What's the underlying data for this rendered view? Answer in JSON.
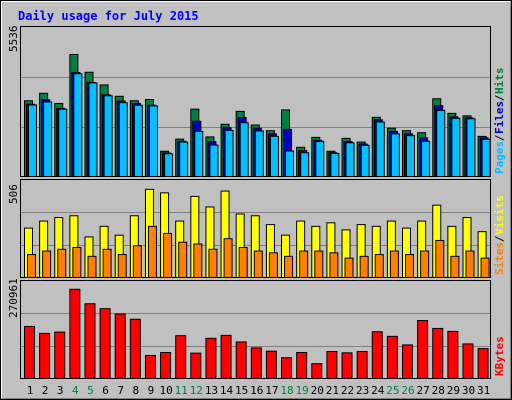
{
  "chart_data": {
    "type": "bar",
    "title": "Daily usage for July 2015",
    "categories": [
      "1",
      "2",
      "3",
      "4",
      "5",
      "6",
      "7",
      "8",
      "9",
      "10",
      "11",
      "12",
      "13",
      "14",
      "15",
      "16",
      "17",
      "18",
      "19",
      "20",
      "21",
      "22",
      "23",
      "24",
      "25",
      "26",
      "27",
      "28",
      "29",
      "30",
      "31"
    ],
    "weekend_days": [
      "4",
      "5",
      "11",
      "12",
      "18",
      "19",
      "25",
      "26"
    ],
    "panels": [
      {
        "id": "hits-panel",
        "max_label": "5536",
        "ylim": [
          0,
          5536
        ],
        "series": [
          {
            "name": "Hits",
            "color": "#008040",
            "values": [
              3060,
              3360,
              2950,
              4930,
              4210,
              3700,
              3240,
              3060,
              3110,
              1020,
              1510,
              2720,
              1600,
              2110,
              2630,
              2080,
              1850,
              2690,
              1180,
              1580,
              1020,
              1540,
              1390,
              2390,
              1950,
              1850,
              1770,
              3140,
              2550,
              2450,
              1620
            ]
          },
          {
            "name": "Files",
            "color": "#0000c0",
            "values": [
              2920,
              3100,
              2750,
              4200,
              3800,
              3300,
              3050,
              2950,
              2880,
              950,
              1420,
              2230,
              1410,
              1970,
              2380,
              1950,
              1720,
              1900,
              1050,
              1460,
              960,
              1410,
              1310,
              2290,
              1820,
              1720,
              1560,
              2860,
              2410,
              2370,
              1560
            ]
          },
          {
            "name": "Pages",
            "color": "#00c0ff",
            "values": [
              2890,
              3010,
              2720,
              4150,
              3780,
              3260,
              2980,
              2880,
              2850,
              920,
              1390,
              1820,
              1270,
              1860,
              2170,
              1840,
              1620,
              1030,
              960,
              1410,
              930,
              1360,
              1260,
              2200,
              1720,
              1650,
              1420,
              2670,
              2350,
              2330,
              1500
            ]
          }
        ],
        "legend": [
          {
            "text": "Pages",
            "color": "#00c0ff"
          },
          {
            "text": "Files",
            "color": "#0000c0"
          },
          {
            "text": "Hits",
            "color": "#008040"
          }
        ]
      },
      {
        "id": "visits-panel",
        "max_label": "506",
        "ylim": [
          0,
          506
        ],
        "series": [
          {
            "name": "Visits",
            "color": "#ffff00",
            "values": [
              280,
              320,
              340,
              350,
              230,
              290,
              240,
              350,
              500,
              480,
              320,
              460,
              400,
              490,
              360,
              350,
              300,
              240,
              320,
              290,
              310,
              270,
              300,
              290,
              320,
              280,
              320,
              410,
              290,
              340,
              260
            ]
          },
          {
            "name": "Sites",
            "color": "#ff8000",
            "values": [
              130,
              150,
              160,
              170,
              120,
              160,
              130,
              180,
              290,
              250,
              200,
              190,
              160,
              220,
              170,
              150,
              140,
              120,
              150,
              150,
              140,
              110,
              120,
              130,
              150,
              130,
              150,
              210,
              120,
              150,
              110
            ]
          }
        ],
        "legend": [
          {
            "text": "Sites",
            "color": "#ff8000"
          },
          {
            "text": "Visits",
            "color": "#ffff00"
          }
        ]
      },
      {
        "id": "kbytes-panel",
        "max_label": "270961",
        "ylim": [
          0,
          270961
        ],
        "series": [
          {
            "name": "KBytes",
            "color": "#ff0000",
            "values": [
              158000,
              137000,
              141000,
              270961,
              227000,
              212000,
              196000,
              180000,
              70000,
              79000,
              130000,
              77000,
              122000,
              131000,
              111000,
              93000,
              83000,
              63000,
              79000,
              45000,
              82000,
              78000,
              82000,
              142000,
              128000,
              102000,
              176000,
              152000,
              143000,
              105000,
              91000
            ]
          }
        ],
        "legend": [
          {
            "text": "KBytes",
            "color": "#ff0000"
          }
        ]
      }
    ]
  }
}
